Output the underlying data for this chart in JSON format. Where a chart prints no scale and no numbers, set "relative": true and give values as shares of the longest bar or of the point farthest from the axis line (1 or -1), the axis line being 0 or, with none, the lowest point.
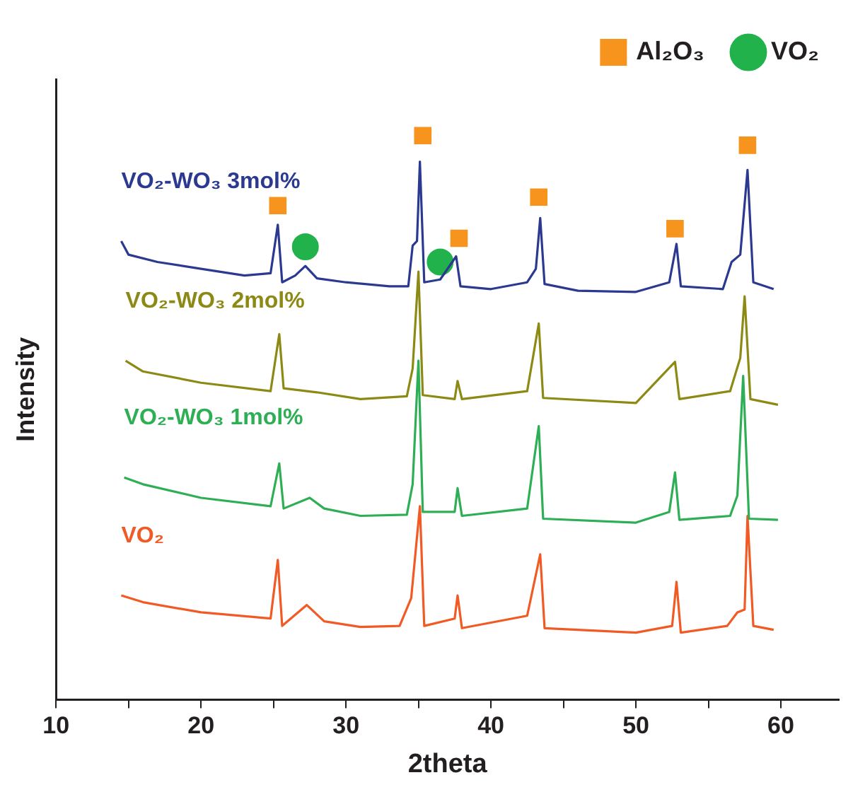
{
  "chart_data": {
    "type": "line",
    "xlabel": "2theta",
    "ylabel": "Intensity",
    "relative": true,
    "xlim": [
      10,
      64
    ],
    "xticks": [
      10,
      {
        "value": 15,
        "label": null
      },
      20,
      {
        "value": 25,
        "label": null
      },
      30,
      {
        "value": 35,
        "label": null
      },
      40,
      {
        "value": 45,
        "label": null
      },
      50,
      {
        "value": 55,
        "label": null
      },
      60
    ],
    "grid": false,
    "legend": "top right",
    "marker": "none",
    "line_style": "solid",
    "series": [
      {
        "name": "VO₂-WO₃ 3mol%",
        "color": "#2b3990",
        "x": [
          14.5,
          15,
          17,
          20,
          23,
          24.8,
          25.3,
          25.6,
          26.5,
          27.2,
          28,
          30,
          33,
          34.3,
          34.6,
          34.9,
          35.1,
          35.4,
          36.5,
          37.6,
          37.9,
          40,
          42.5,
          43.1,
          43.4,
          43.7,
          46,
          50,
          52.3,
          52.8,
          53.1,
          56,
          56.6,
          57.2,
          57.7,
          58.1,
          59.5
        ],
        "values": [
          0.813,
          0.789,
          0.776,
          0.764,
          0.752,
          0.756,
          0.842,
          0.74,
          0.752,
          0.769,
          0.747,
          0.74,
          0.733,
          0.733,
          0.805,
          0.813,
          0.954,
          0.74,
          0.745,
          0.786,
          0.733,
          0.728,
          0.74,
          0.764,
          0.854,
          0.737,
          0.725,
          0.723,
          0.74,
          0.808,
          0.733,
          0.728,
          0.776,
          0.789,
          0.939,
          0.74,
          0.728
        ]
      },
      {
        "name": "VO₂-WO₃ 2mol%",
        "color": "#8c8a14",
        "x": [
          14.8,
          16,
          20,
          24.8,
          25.4,
          25.7,
          28,
          31,
          34.2,
          34.6,
          35.0,
          35.3,
          37.5,
          37.7,
          38,
          42.5,
          43.3,
          43.6,
          50,
          52.7,
          53,
          56.5,
          57.2,
          57.5,
          57.9,
          59.8
        ],
        "values": [
          0.601,
          0.582,
          0.562,
          0.547,
          0.648,
          0.552,
          0.545,
          0.533,
          0.538,
          0.587,
          0.759,
          0.54,
          0.533,
          0.565,
          0.533,
          0.547,
          0.667,
          0.535,
          0.526,
          0.599,
          0.533,
          0.547,
          0.606,
          0.715,
          0.533,
          0.523
        ]
      },
      {
        "name": "VO₂-WO₃ 1mol%",
        "color": "#2eae55",
        "x": [
          14.7,
          16,
          20,
          24.8,
          25.4,
          25.7,
          27.5,
          28.5,
          31,
          34.2,
          34.6,
          35.0,
          35.3,
          37.5,
          37.7,
          38,
          42.5,
          43.3,
          43.6,
          50,
          52.3,
          52.7,
          53,
          56.5,
          57.0,
          57.4,
          57.8,
          59.8
        ],
        "values": [
          0.394,
          0.382,
          0.358,
          0.343,
          0.419,
          0.339,
          0.358,
          0.339,
          0.326,
          0.328,
          0.382,
          0.601,
          0.333,
          0.333,
          0.375,
          0.326,
          0.339,
          0.485,
          0.321,
          0.314,
          0.333,
          0.403,
          0.319,
          0.326,
          0.362,
          0.574,
          0.321,
          0.319
        ]
      },
      {
        "name": "VO₂",
        "color": "#f15a24",
        "x": [
          14.5,
          16,
          20,
          24.8,
          25.3,
          25.6,
          27.3,
          28.5,
          31,
          33.7,
          34.5,
          35.1,
          35.4,
          37.5,
          37.7,
          38,
          42.5,
          43.4,
          43.7,
          50,
          52.5,
          52.8,
          53.1,
          56.3,
          57,
          57.5,
          57.7,
          58.1,
          59.5
        ],
        "values": [
          0.185,
          0.173,
          0.155,
          0.144,
          0.248,
          0.131,
          0.168,
          0.139,
          0.129,
          0.131,
          0.18,
          0.343,
          0.131,
          0.144,
          0.185,
          0.127,
          0.149,
          0.258,
          0.127,
          0.119,
          0.131,
          0.209,
          0.119,
          0.131,
          0.155,
          0.16,
          0.326,
          0.131,
          0.124
        ]
      },
      {
        "type": "scatter",
        "name": "Al₂O₃",
        "marker": "square",
        "color": "#f7941d",
        "x": [
          25.3,
          35.3,
          37.8,
          43.3,
          52.7,
          57.7
        ],
        "values": [
          0.876,
          1.0,
          0.818,
          0.891,
          0.835,
          0.983
        ]
      },
      {
        "type": "scatter",
        "name": "VO₂",
        "marker": "circle",
        "color": "#22b24c",
        "x": [
          27.2,
          36.5
        ],
        "values": [
          0.803,
          0.776
        ]
      }
    ]
  }
}
